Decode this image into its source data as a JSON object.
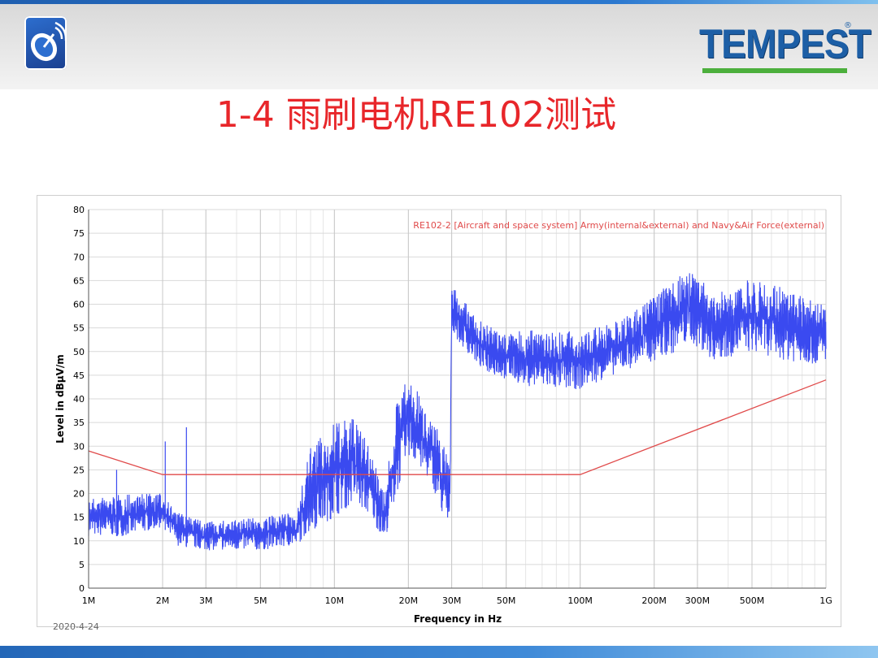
{
  "header": {
    "logo": "satellite-dish-logo",
    "brand": "TEMPEST",
    "brand_mark": "®",
    "title": "1-4 雨刷电机RE102测试"
  },
  "footer": {
    "date": "2020-4-24"
  },
  "colors": {
    "signal": "#3a4af0",
    "limit": "#e04a4a",
    "title": "#e8262a",
    "grid": "#d9d9d9"
  },
  "chart_data": {
    "type": "line",
    "xlabel": "Frequency in Hz",
    "ylabel": "Level in dBµV/m",
    "x_scale": "log",
    "xlim": [
      1000000,
      1000000000
    ],
    "ylim": [
      0,
      80
    ],
    "grid": true,
    "x_ticks": [
      {
        "value": 1000000,
        "label": "1M"
      },
      {
        "value": 2000000,
        "label": "2M"
      },
      {
        "value": 3000000,
        "label": "3M"
      },
      {
        "value": 5000000,
        "label": "5M"
      },
      {
        "value": 10000000,
        "label": "10M"
      },
      {
        "value": 20000000,
        "label": "20M"
      },
      {
        "value": 30000000,
        "label": "30M"
      },
      {
        "value": 50000000,
        "label": "50M"
      },
      {
        "value": 100000000,
        "label": "100M"
      },
      {
        "value": 200000000,
        "label": "200M"
      },
      {
        "value": 300000000,
        "label": "300M"
      },
      {
        "value": 500000000,
        "label": "500M"
      },
      {
        "value": 1000000000,
        "label": "1G"
      }
    ],
    "y_ticks": [
      0,
      5,
      10,
      15,
      20,
      25,
      30,
      35,
      40,
      45,
      50,
      55,
      60,
      65,
      70,
      75,
      80
    ],
    "series": [
      {
        "name": "RE102-2 [Aircraft and space system] Army(internal&external) and Navy&Air Force(external)",
        "style": "limit-line",
        "x": [
          1000000,
          2000000,
          100000000,
          1000000000
        ],
        "y": [
          29,
          24,
          24,
          44
        ]
      },
      {
        "style": "measured-envelope",
        "x": [
          1000000,
          1500000,
          2000000,
          2300000,
          3000000,
          5000000,
          7000000,
          8000000,
          10000000,
          12000000,
          14000000,
          16000000,
          18000000,
          20000000,
          25000000,
          29500000,
          30000000,
          32000000,
          40000000,
          50000000,
          70000000,
          100000000,
          150000000,
          200000000,
          250000000,
          280000000,
          350000000,
          500000000,
          700000000,
          1000000000
        ],
        "y_max": [
          19,
          20,
          20,
          16,
          14,
          15,
          16,
          30,
          35,
          36,
          30,
          20,
          40,
          45,
          36,
          28,
          64,
          62,
          56,
          54,
          55,
          54,
          57,
          62,
          66,
          68,
          62,
          66,
          63,
          60
        ],
        "y_min": [
          11,
          11,
          13,
          9,
          8,
          8,
          9,
          12,
          15,
          18,
          15,
          10,
          20,
          28,
          22,
          10,
          55,
          52,
          46,
          44,
          42,
          42,
          46,
          48,
          50,
          52,
          48,
          50,
          48,
          47
        ]
      }
    ],
    "spikes": [
      {
        "x": 2050000,
        "y": 31
      },
      {
        "x": 2500000,
        "y": 34
      },
      {
        "x": 1300000,
        "y": 25
      },
      {
        "x": 30000000,
        "y": 62
      }
    ]
  }
}
